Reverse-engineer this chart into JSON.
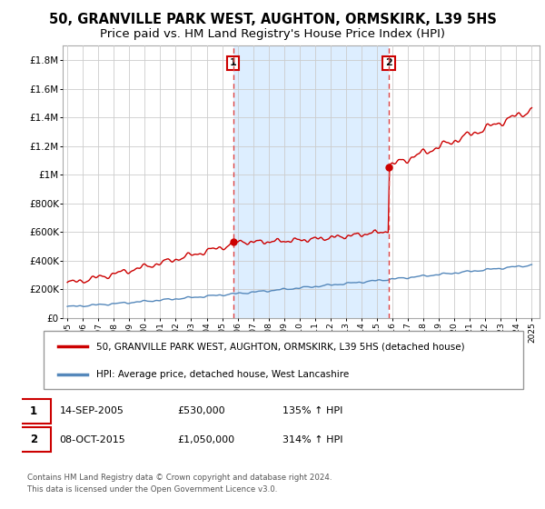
{
  "title": "50, GRANVILLE PARK WEST, AUGHTON, ORMSKIRK, L39 5HS",
  "subtitle": "Price paid vs. HM Land Registry's House Price Index (HPI)",
  "ylim": [
    0,
    1900000
  ],
  "yticks": [
    0,
    200000,
    400000,
    600000,
    800000,
    1000000,
    1200000,
    1400000,
    1600000,
    1800000
  ],
  "ytick_labels": [
    "£0",
    "£200K",
    "£400K",
    "£600K",
    "£800K",
    "£1M",
    "£1.2M",
    "£1.4M",
    "£1.6M",
    "£1.8M"
  ],
  "grid_color": "#cccccc",
  "sale1_x": 2005.71,
  "sale1_price": 530000,
  "sale2_x": 2015.77,
  "sale2_price": 1050000,
  "legend_line1_label": "50, GRANVILLE PARK WEST, AUGHTON, ORMSKIRK, L39 5HS (detached house)",
  "legend_line2_label": "HPI: Average price, detached house, West Lancashire",
  "footnote": "Contains HM Land Registry data © Crown copyright and database right 2024.\nThis data is licensed under the Open Government Licence v3.0.",
  "note1_date": "14-SEP-2005",
  "note1_price": "£530,000",
  "note1_hpi": "135% ↑ HPI",
  "note2_date": "08-OCT-2015",
  "note2_price": "£1,050,000",
  "note2_hpi": "314% ↑ HPI",
  "red_line_color": "#cc0000",
  "blue_line_color": "#5588bb",
  "shade_color": "#ddeeff",
  "vline_color": "#dd4444",
  "title_fontsize": 10.5,
  "subtitle_fontsize": 9.5
}
